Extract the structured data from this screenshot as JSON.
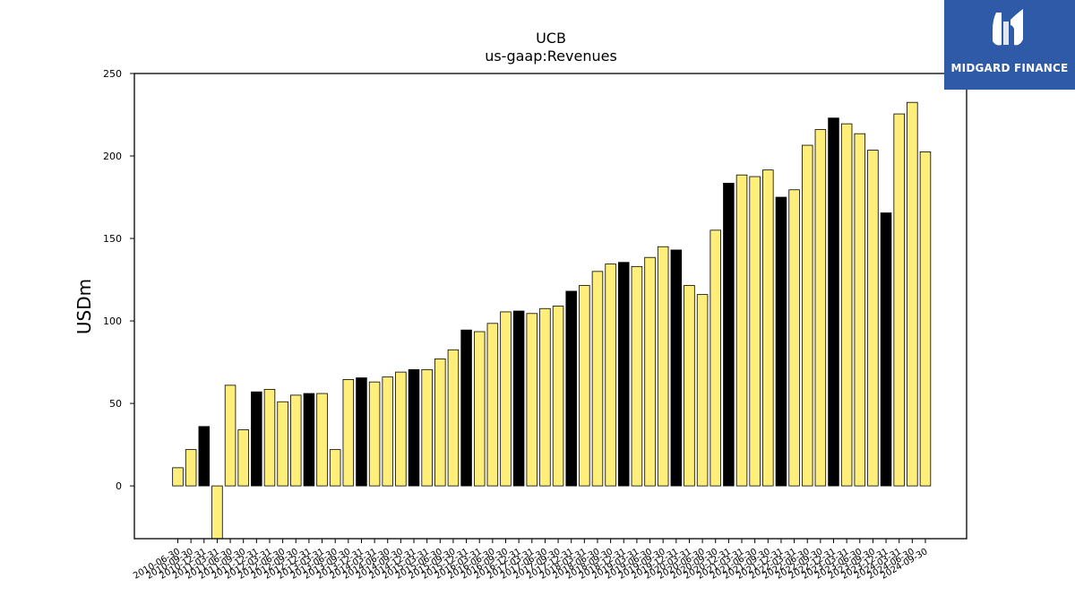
{
  "brand": {
    "name": "MIDGARD FINANCE",
    "bg_color": "#2e5aa8"
  },
  "chart_data": {
    "type": "bar",
    "title": "UCB",
    "subtitle": "us-gaap:Revenues",
    "xlabel": "",
    "ylabel": "USDm",
    "ylim": [
      -32,
      250
    ],
    "yticks": [
      0,
      50,
      100,
      150,
      200,
      250
    ],
    "grid": false,
    "colors": {
      "default": "#ffee7a",
      "highlight": "#000000",
      "edge": "#000000"
    },
    "categories": [
      "2010-06-30",
      "2010-09-30",
      "2010-12-31",
      "2011-03-31",
      "2011-06-30",
      "2011-09-30",
      "2011-12-31",
      "2012-03-31",
      "2012-06-30",
      "2012-09-30",
      "2012-12-31",
      "2013-03-31",
      "2013-06-30",
      "2013-09-30",
      "2013-12-31",
      "2014-03-31",
      "2014-06-30",
      "2014-09-30",
      "2014-12-31",
      "2015-03-31",
      "2015-06-30",
      "2015-09-30",
      "2015-12-31",
      "2016-03-31",
      "2016-06-30",
      "2016-09-30",
      "2016-12-31",
      "2017-03-31",
      "2017-06-30",
      "2017-09-30",
      "2017-12-31",
      "2018-03-31",
      "2018-06-30",
      "2018-09-30",
      "2018-12-31",
      "2019-03-31",
      "2019-06-30",
      "2019-09-30",
      "2019-12-31",
      "2020-03-31",
      "2020-06-30",
      "2020-09-30",
      "2020-12-31",
      "2021-03-31",
      "2021-06-30",
      "2021-09-30",
      "2021-12-31",
      "2022-03-31",
      "2022-06-30",
      "2022-09-30",
      "2022-12-31",
      "2023-03-31",
      "2023-06-30",
      "2023-09-30",
      "2023-12-31",
      "2024-03-31",
      "2024-06-30",
      "2024-09-30"
    ],
    "values": [
      11,
      22,
      36,
      -33,
      61,
      34,
      57,
      58.5,
      51,
      55,
      56,
      56,
      22,
      64.5,
      65.5,
      63,
      66,
      69,
      70.5,
      70.5,
      77,
      82.5,
      94.5,
      93.5,
      98.5,
      105.5,
      106,
      104.5,
      107.5,
      109,
      118,
      121.5,
      130,
      134.5,
      135.5,
      133,
      138.5,
      145,
      143,
      121.5,
      116,
      155,
      183.5,
      188.5,
      187.5,
      191.5,
      175,
      179.5,
      206.5,
      216,
      223,
      219.5,
      213.5,
      203.5,
      165.5,
      225.5,
      232.5,
      202.5
    ],
    "highlight": [
      false,
      false,
      true,
      false,
      false,
      false,
      true,
      false,
      false,
      false,
      true,
      false,
      false,
      false,
      true,
      false,
      false,
      false,
      true,
      false,
      false,
      false,
      true,
      false,
      false,
      false,
      true,
      false,
      false,
      false,
      true,
      false,
      false,
      false,
      true,
      false,
      false,
      false,
      true,
      false,
      false,
      false,
      true,
      false,
      false,
      false,
      true,
      false,
      false,
      false,
      true,
      false,
      false,
      false,
      true,
      false,
      false,
      false
    ]
  }
}
